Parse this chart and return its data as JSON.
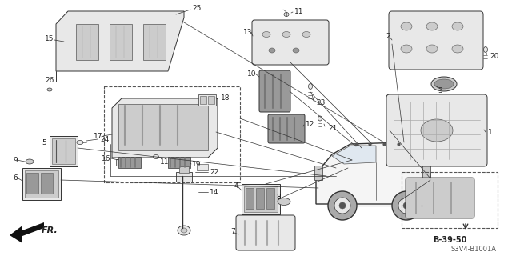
{
  "bg_color": "#ffffff",
  "fig_width": 6.4,
  "fig_height": 3.2,
  "diagram_code": "S3V4-B1001A",
  "ref_code": "B-39-50",
  "line_color": "#333333",
  "light_gray": "#888888",
  "mid_gray": "#aaaaaa",
  "dark_gray": "#555555",
  "fill_light": "#e8e8e8",
  "fill_mid": "#cccccc",
  "fill_dark": "#999999"
}
